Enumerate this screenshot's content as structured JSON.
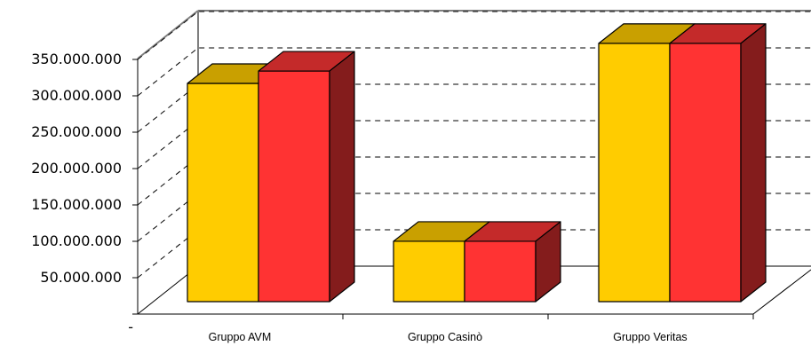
{
  "chart_data": {
    "type": "bar",
    "categories": [
      "Gruppo AVM",
      "Gruppo Casinò",
      "Gruppo Veritas"
    ],
    "series": [
      {
        "color": "#FFCC00",
        "values": [
          300000000,
          83000000,
          355000000
        ]
      },
      {
        "color": "#FF3333",
        "values": [
          317000000,
          83000000,
          355000000
        ]
      }
    ],
    "y_ticks": [
      "-",
      "50.000.000",
      "100.000.000",
      "150.000.000",
      "200.000.000",
      "250.000.000",
      "300.000.000",
      "350.000.000"
    ],
    "y_tick_values": [
      0,
      50000000,
      100000000,
      150000000,
      200000000,
      250000000,
      300000000,
      350000000
    ],
    "ylim": [
      0,
      350000000
    ],
    "grid": true,
    "legend": "none",
    "title": "",
    "xlabel": "",
    "ylabel": "",
    "colors": {
      "series1_top": "#C9A000",
      "series2_top": "#C42A2A",
      "series2_side": "#841C1C",
      "wall": "#7F7F7F"
    }
  }
}
